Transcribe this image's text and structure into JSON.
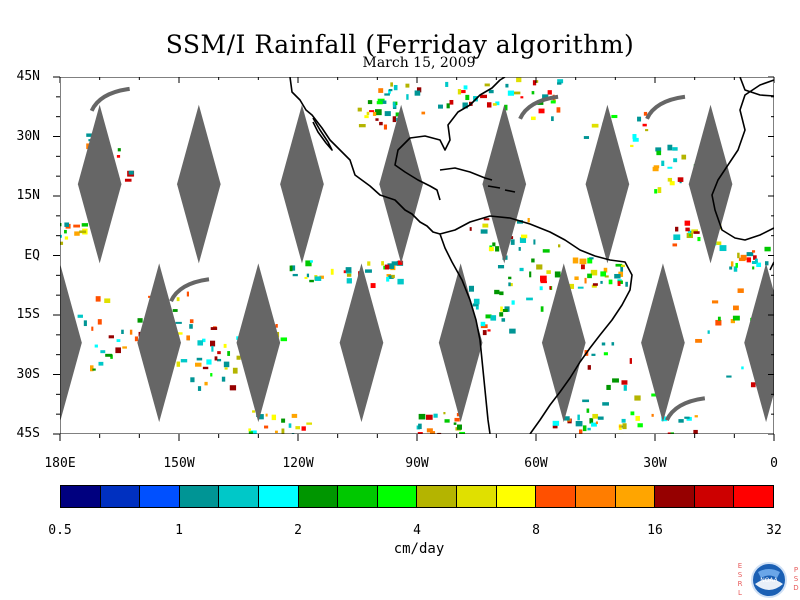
{
  "title": "SSM/I Rainfall (Ferriday algorithm)",
  "subtitle": "March 15, 2009",
  "lat_labels": [
    {
      "text": "45N",
      "lat": 45
    },
    {
      "text": "30N",
      "lat": 30
    },
    {
      "text": "15N",
      "lat": 15
    },
    {
      "text": "EQ",
      "lat": 0
    },
    {
      "text": "15S",
      "lat": -15
    },
    {
      "text": "30S",
      "lat": -30
    },
    {
      "text": "45S",
      "lat": -45
    }
  ],
  "lon_labels": [
    {
      "text": "180E",
      "lon": -180
    },
    {
      "text": "150W",
      "lon": -150
    },
    {
      "text": "120W",
      "lon": -120
    },
    {
      "text": "90W",
      "lon": -90
    },
    {
      "text": "60W",
      "lon": -60
    },
    {
      "text": "30W",
      "lon": -30
    },
    {
      "text": "0",
      "lon": 0
    }
  ],
  "map_extent": {
    "lon": [
      -180,
      0
    ],
    "lat": [
      -45,
      45
    ]
  },
  "colorbar": {
    "colors": [
      "#00007f",
      "#0030c0",
      "#0050ff",
      "#009595",
      "#00c8c8",
      "#00ffff",
      "#009600",
      "#00c800",
      "#00ff00",
      "#b4b400",
      "#e0e000",
      "#ffff00",
      "#ff5000",
      "#ff7d00",
      "#ffa500",
      "#960000",
      "#cd0000",
      "#ff0000"
    ],
    "tick_labels": [
      "0.5",
      "1",
      "2",
      "4",
      "8",
      "16",
      "32"
    ],
    "unit": "cm/day"
  },
  "swath_gaps": {
    "color": "#666666",
    "north_centers_lon": [
      -170,
      -145,
      -119,
      -94,
      -68,
      -42,
      -16
    ],
    "south_centers_lon": [
      -180,
      -155,
      -130,
      -104,
      -79,
      -53,
      -28,
      -2
    ],
    "north_lat_range": [
      -2,
      38
    ],
    "south_lat_range": [
      -42,
      -2
    ],
    "half_width_deg": 5.5
  },
  "logo": {
    "side_left": "ESRL",
    "side_right": "PSD",
    "center": "NOAA"
  }
}
